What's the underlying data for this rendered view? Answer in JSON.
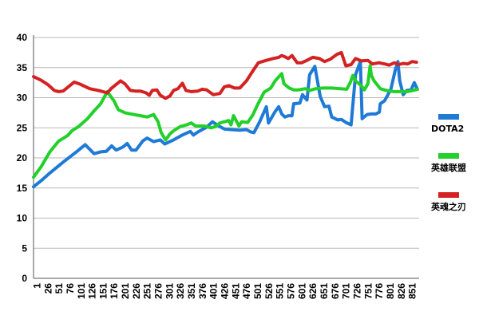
{
  "chart_data": {
    "type": "line",
    "title": "",
    "xlabel": "",
    "ylabel": "",
    "ylim": [
      0,
      40
    ],
    "yticks": [
      0,
      5,
      10,
      15,
      20,
      25,
      30,
      35,
      40
    ],
    "x_tick_labels": [
      "1",
      "26",
      "51",
      "76",
      "101",
      "126",
      "151",
      "176",
      "201",
      "226",
      "251",
      "276",
      "301",
      "326",
      "351",
      "376",
      "401",
      "426",
      "451",
      "476",
      "501",
      "526",
      "551",
      "576",
      "601",
      "626",
      "651",
      "676",
      "701",
      "726",
      "751",
      "776",
      "801",
      "826",
      "851"
    ],
    "xlim": [
      -7,
      866
    ],
    "grid": "horizontal",
    "legend_position": "right",
    "series": [
      {
        "name": "DOTA2",
        "color": "#1f7ad6",
        "points": [
          [
            -7,
            15.2
          ],
          [
            10,
            16.2
          ],
          [
            30,
            17.5
          ],
          [
            60,
            19.3
          ],
          [
            90,
            21.0
          ],
          [
            110,
            22.2
          ],
          [
            130,
            20.7
          ],
          [
            145,
            21.0
          ],
          [
            158,
            21.1
          ],
          [
            170,
            22.0
          ],
          [
            180,
            21.3
          ],
          [
            195,
            21.8
          ],
          [
            205,
            22.4
          ],
          [
            215,
            21.3
          ],
          [
            225,
            21.3
          ],
          [
            240,
            22.8
          ],
          [
            250,
            23.3
          ],
          [
            265,
            22.7
          ],
          [
            280,
            23.0
          ],
          [
            290,
            22.3
          ],
          [
            310,
            23.0
          ],
          [
            330,
            23.8
          ],
          [
            348,
            24.4
          ],
          [
            355,
            23.8
          ],
          [
            365,
            24.3
          ],
          [
            385,
            25.1
          ],
          [
            398,
            26.0
          ],
          [
            410,
            25.4
          ],
          [
            425,
            24.8
          ],
          [
            440,
            24.7
          ],
          [
            460,
            24.6
          ],
          [
            475,
            24.7
          ],
          [
            485,
            24.3
          ],
          [
            492,
            24.2
          ],
          [
            505,
            26.0
          ],
          [
            520,
            28.5
          ],
          [
            525,
            25.8
          ],
          [
            540,
            27.7
          ],
          [
            548,
            28.5
          ],
          [
            555,
            27.3
          ],
          [
            562,
            26.8
          ],
          [
            570,
            27.0
          ],
          [
            578,
            27.0
          ],
          [
            582,
            29.0
          ],
          [
            596,
            29.1
          ],
          [
            602,
            30.5
          ],
          [
            612,
            29.6
          ],
          [
            618,
            33.8
          ],
          [
            630,
            35.2
          ],
          [
            642,
            30.2
          ],
          [
            652,
            28.5
          ],
          [
            662,
            28.6
          ],
          [
            668,
            26.8
          ],
          [
            682,
            26.3
          ],
          [
            690,
            26.4
          ],
          [
            700,
            25.9
          ],
          [
            712,
            25.5
          ],
          [
            722,
            33.8
          ],
          [
            733,
            36.0
          ],
          [
            737,
            26.5
          ],
          [
            748,
            27.2
          ],
          [
            758,
            27.3
          ],
          [
            768,
            27.3
          ],
          [
            776,
            27.6
          ],
          [
            778,
            29.0
          ],
          [
            788,
            29.5
          ],
          [
            802,
            31.4
          ],
          [
            812,
            34.6
          ],
          [
            818,
            36.0
          ],
          [
            822,
            32.8
          ],
          [
            830,
            30.5
          ],
          [
            838,
            31.2
          ],
          [
            848,
            31.3
          ],
          [
            855,
            32.5
          ],
          [
            862,
            31.4
          ]
        ]
      },
      {
        "name": "英雄联盟",
        "color": "#22d02a",
        "points": [
          [
            -7,
            16.8
          ],
          [
            10,
            18.5
          ],
          [
            30,
            21.0
          ],
          [
            50,
            22.8
          ],
          [
            70,
            23.7
          ],
          [
            80,
            24.5
          ],
          [
            95,
            25.2
          ],
          [
            115,
            26.5
          ],
          [
            130,
            27.8
          ],
          [
            145,
            29.0
          ],
          [
            160,
            31.0
          ],
          [
            175,
            29.5
          ],
          [
            185,
            28.0
          ],
          [
            200,
            27.5
          ],
          [
            220,
            27.2
          ],
          [
            235,
            27.0
          ],
          [
            250,
            26.8
          ],
          [
            265,
            27.2
          ],
          [
            275,
            26.0
          ],
          [
            282,
            24.2
          ],
          [
            292,
            23.0
          ],
          [
            302,
            24.0
          ],
          [
            310,
            24.5
          ],
          [
            325,
            25.2
          ],
          [
            340,
            25.5
          ],
          [
            350,
            25.8
          ],
          [
            360,
            25.3
          ],
          [
            380,
            25.3
          ],
          [
            395,
            25.0
          ],
          [
            405,
            25.2
          ],
          [
            415,
            25.8
          ],
          [
            425,
            26.0
          ],
          [
            435,
            26.2
          ],
          [
            440,
            25.5
          ],
          [
            446,
            27.0
          ],
          [
            458,
            25.3
          ],
          [
            464,
            26.0
          ],
          [
            478,
            25.9
          ],
          [
            490,
            27.2
          ],
          [
            500,
            28.8
          ],
          [
            515,
            30.9
          ],
          [
            530,
            31.6
          ],
          [
            540,
            32.8
          ],
          [
            555,
            34.0
          ],
          [
            560,
            32.3
          ],
          [
            572,
            31.6
          ],
          [
            582,
            31.3
          ],
          [
            593,
            31.3
          ],
          [
            608,
            31.5
          ],
          [
            618,
            31.2
          ],
          [
            632,
            31.5
          ],
          [
            648,
            31.6
          ],
          [
            668,
            31.6
          ],
          [
            688,
            31.5
          ],
          [
            702,
            31.4
          ],
          [
            710,
            32.5
          ],
          [
            716,
            33.7
          ],
          [
            722,
            32.8
          ],
          [
            735,
            32.0
          ],
          [
            742,
            31.3
          ],
          [
            750,
            32.3
          ],
          [
            755,
            35.3
          ],
          [
            758,
            33.7
          ],
          [
            764,
            32.8
          ],
          [
            778,
            31.5
          ],
          [
            792,
            31.2
          ],
          [
            808,
            31.0
          ],
          [
            822,
            31.0
          ],
          [
            838,
            31.0
          ],
          [
            852,
            31.2
          ],
          [
            862,
            31.4
          ]
        ]
      },
      {
        "name": "英魂之刃",
        "color": "#d42222",
        "points": [
          [
            -7,
            33.5
          ],
          [
            10,
            32.9
          ],
          [
            25,
            32.2
          ],
          [
            40,
            31.2
          ],
          [
            50,
            31.0
          ],
          [
            60,
            31.1
          ],
          [
            70,
            31.7
          ],
          [
            85,
            32.6
          ],
          [
            100,
            32.2
          ],
          [
            120,
            31.5
          ],
          [
            140,
            31.2
          ],
          [
            160,
            30.8
          ],
          [
            170,
            31.6
          ],
          [
            190,
            32.8
          ],
          [
            200,
            32.3
          ],
          [
            212,
            31.2
          ],
          [
            225,
            31.1
          ],
          [
            235,
            31.1
          ],
          [
            248,
            30.8
          ],
          [
            255,
            30.4
          ],
          [
            262,
            31.2
          ],
          [
            272,
            31.3
          ],
          [
            280,
            30.4
          ],
          [
            292,
            29.9
          ],
          [
            302,
            30.3
          ],
          [
            310,
            31.2
          ],
          [
            320,
            31.5
          ],
          [
            330,
            32.4
          ],
          [
            338,
            31.2
          ],
          [
            350,
            31.0
          ],
          [
            365,
            31.1
          ],
          [
            375,
            31.4
          ],
          [
            385,
            31.3
          ],
          [
            400,
            30.5
          ],
          [
            415,
            30.7
          ],
          [
            425,
            31.8
          ],
          [
            435,
            32.0
          ],
          [
            448,
            31.6
          ],
          [
            460,
            31.6
          ],
          [
            475,
            32.8
          ],
          [
            490,
            34.5
          ],
          [
            502,
            35.8
          ],
          [
            520,
            36.2
          ],
          [
            535,
            36.5
          ],
          [
            548,
            36.7
          ],
          [
            555,
            37.0
          ],
          [
            562,
            36.8
          ],
          [
            570,
            36.5
          ],
          [
            578,
            37.0
          ],
          [
            590,
            35.8
          ],
          [
            600,
            35.8
          ],
          [
            612,
            36.2
          ],
          [
            625,
            36.7
          ],
          [
            640,
            36.5
          ],
          [
            652,
            36.0
          ],
          [
            665,
            36.4
          ],
          [
            680,
            37.2
          ],
          [
            690,
            37.5
          ],
          [
            700,
            35.3
          ],
          [
            712,
            35.5
          ],
          [
            722,
            36.5
          ],
          [
            735,
            36.1
          ],
          [
            750,
            36.2
          ],
          [
            760,
            35.6
          ],
          [
            775,
            35.8
          ],
          [
            788,
            35.6
          ],
          [
            798,
            35.4
          ],
          [
            810,
            35.8
          ],
          [
            820,
            35.5
          ],
          [
            830,
            35.7
          ],
          [
            840,
            35.6
          ],
          [
            850,
            36.0
          ],
          [
            860,
            35.9
          ]
        ]
      }
    ]
  }
}
